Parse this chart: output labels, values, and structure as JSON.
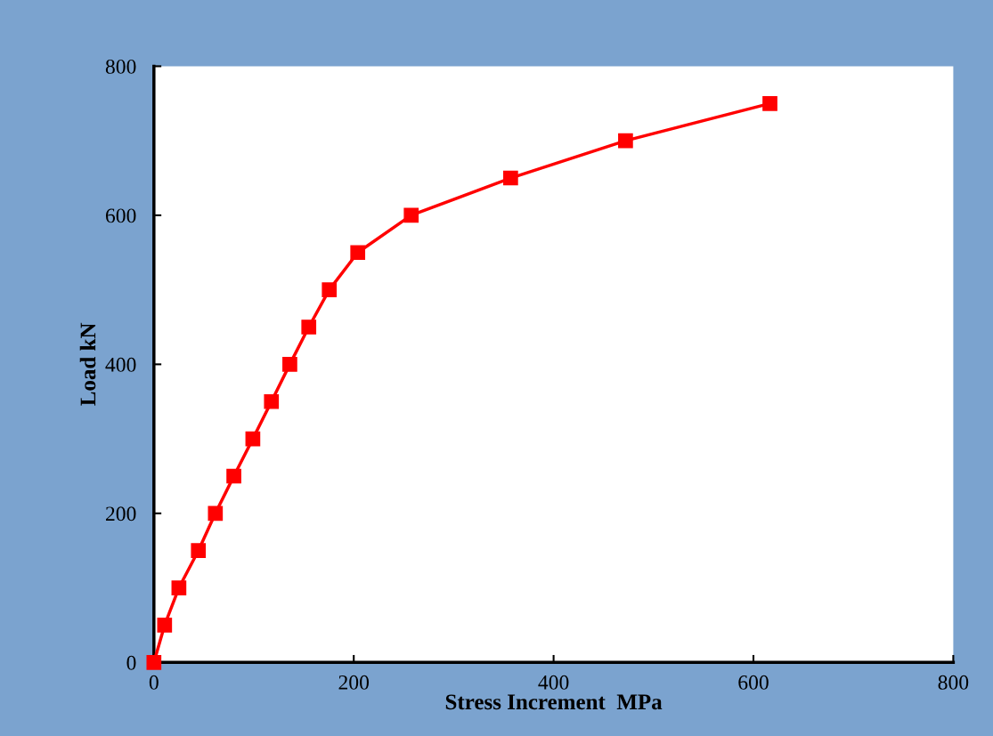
{
  "chart_data": {
    "type": "line",
    "xlabel": "Stress Increment  MPa",
    "ylabel": "Load kN",
    "series": [
      {
        "color": "#ff0000",
        "x": [
          0,
          10.7,
          25,
          44.5,
          61.5,
          80,
          99,
          117.6,
          136,
          155,
          175.5,
          204,
          257.5,
          357,
          472,
          616.5
        ],
        "values": [
          0,
          50,
          100,
          150,
          200,
          250,
          300,
          350,
          400,
          450,
          500,
          550,
          600,
          650,
          700,
          750
        ]
      }
    ],
    "xlim": [
      0,
      800
    ],
    "ylim": [
      0,
      800
    ],
    "xticks": [
      0,
      200,
      400,
      600,
      800
    ],
    "yticks": [
      0,
      200,
      400,
      600,
      800
    ],
    "marker": "square",
    "line_style": "solid",
    "grid": false,
    "legend": false
  }
}
